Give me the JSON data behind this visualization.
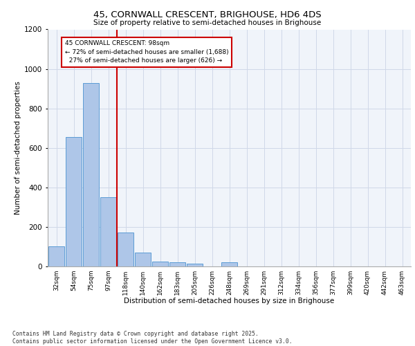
{
  "title1": "45, CORNWALL CRESCENT, BRIGHOUSE, HD6 4DS",
  "title2": "Size of property relative to semi-detached houses in Brighouse",
  "xlabel": "Distribution of semi-detached houses by size in Brighouse",
  "ylabel": "Number of semi-detached properties",
  "bar_labels": [
    "32sqm",
    "54sqm",
    "75sqm",
    "97sqm",
    "118sqm",
    "140sqm",
    "162sqm",
    "183sqm",
    "205sqm",
    "226sqm",
    "248sqm",
    "269sqm",
    "291sqm",
    "312sqm",
    "334sqm",
    "356sqm",
    "377sqm",
    "399sqm",
    "420sqm",
    "442sqm",
    "463sqm"
  ],
  "bar_values": [
    100,
    655,
    930,
    350,
    170,
    70,
    25,
    20,
    15,
    0,
    20,
    0,
    0,
    0,
    0,
    0,
    0,
    0,
    0,
    0,
    0
  ],
  "bar_color": "#aec6e8",
  "bar_edge_color": "#5b9bd5",
  "property_size": "98sqm",
  "pct_smaller": 72,
  "count_smaller": 1688,
  "pct_larger": 27,
  "count_larger": 626,
  "line_color": "#cc0000",
  "annotation_box_color": "#cc0000",
  "ylim": [
    0,
    1200
  ],
  "yticks": [
    0,
    200,
    400,
    600,
    800,
    1000,
    1200
  ],
  "grid_color": "#d0d8e8",
  "bg_color": "#f0f4fa",
  "footer": "Contains HM Land Registry data © Crown copyright and database right 2025.\nContains public sector information licensed under the Open Government Licence v3.0."
}
